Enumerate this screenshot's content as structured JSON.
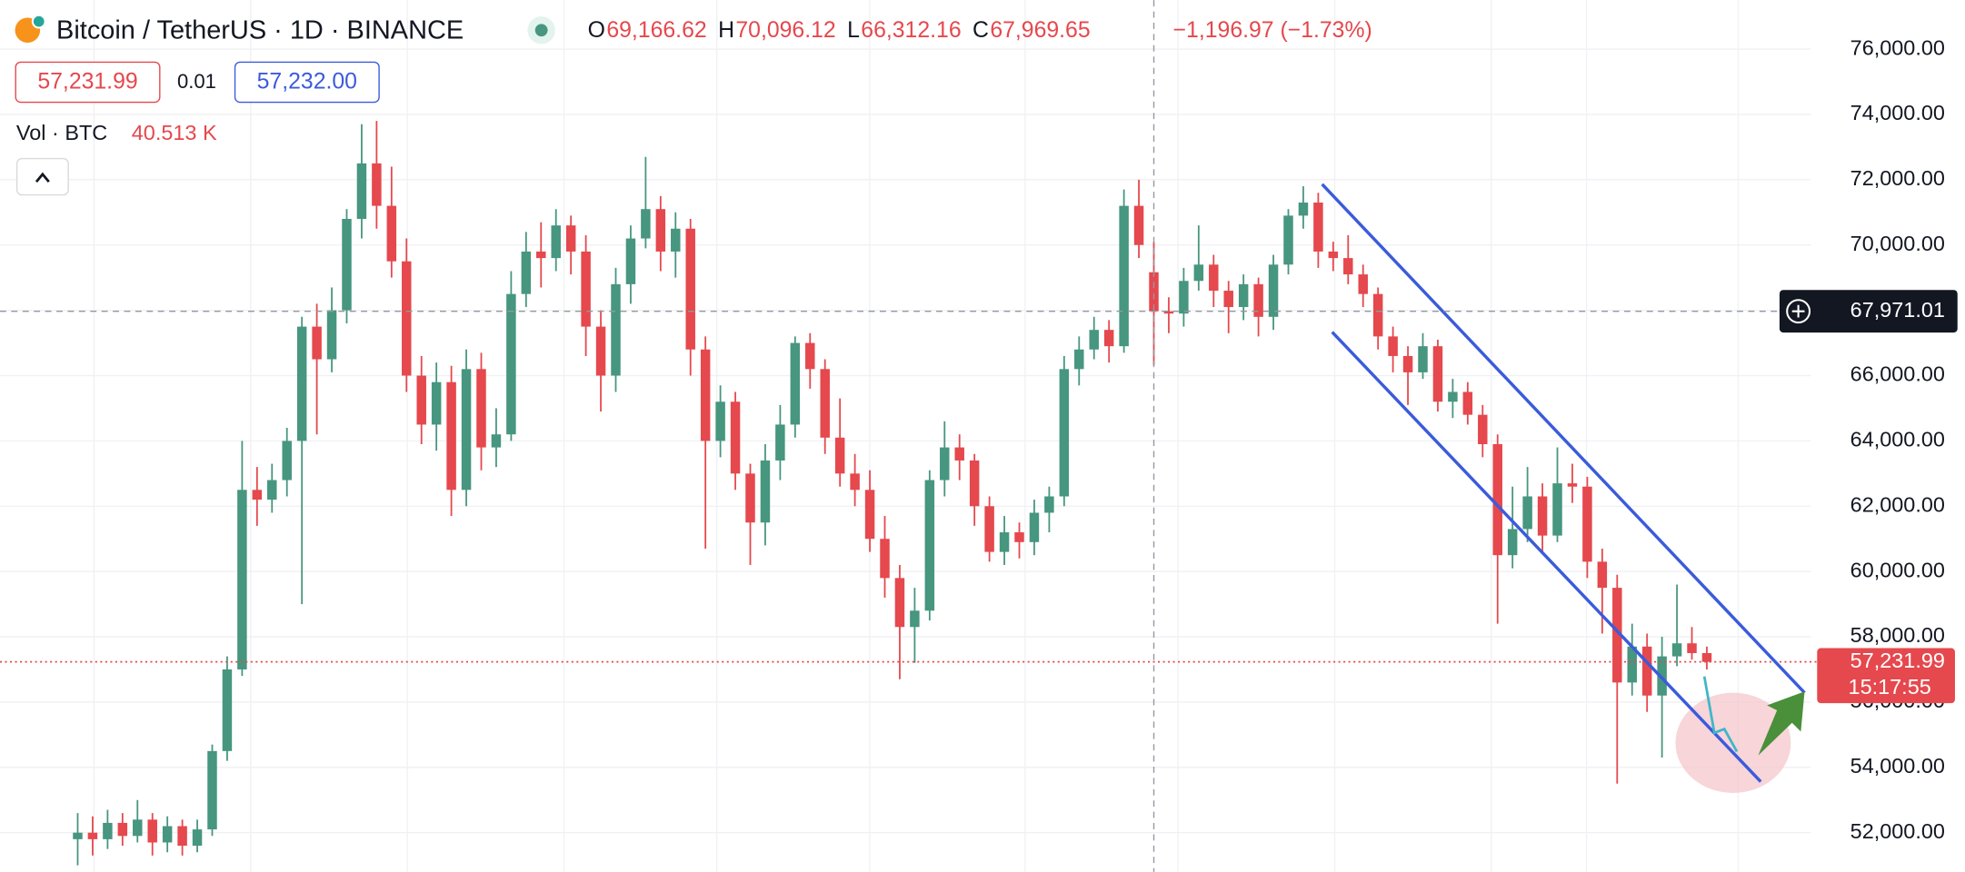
{
  "toolbar": {
    "title": "Bitcoin / TetherUS · 1D · BINANCE",
    "ohlc": [
      {
        "key": "O",
        "value": "69,166.62"
      },
      {
        "key": "H",
        "value": "70,096.12"
      },
      {
        "key": "L",
        "value": "66,312.16"
      },
      {
        "key": "C",
        "value": "67,969.65"
      }
    ],
    "change": "−1,196.97 (−1.73%)",
    "sell": "57,231.99",
    "spread": "0.01",
    "buy": "57,232.00",
    "volume_label": "Vol · BTC",
    "volume_value": "40.513 K"
  },
  "chart_data": {
    "type": "candlestick",
    "up_color": "#47967f",
    "down_color": "#e5484d",
    "ylim": [
      50800,
      77500
    ],
    "yticks": [
      {
        "value": 52000,
        "label": "52,000.00"
      },
      {
        "value": 54000,
        "label": "54,000.00"
      },
      {
        "value": 56000,
        "label": "56,000.00"
      },
      {
        "value": 58000,
        "label": "58,000.00"
      },
      {
        "value": 60000,
        "label": "60,000.00"
      },
      {
        "value": 62000,
        "label": "62,000.00"
      },
      {
        "value": 64000,
        "label": "64,000.00"
      },
      {
        "value": 66000,
        "label": "66,000.00"
      },
      {
        "value": 68000,
        "label": "68,000.00"
      },
      {
        "value": 70000,
        "label": "70,000.00"
      },
      {
        "value": 72000,
        "label": "72,000.00"
      },
      {
        "value": 74000,
        "label": "74,000.00"
      },
      {
        "value": 76000,
        "label": "76,000.00"
      }
    ],
    "grid": true,
    "crosshair_index": 72,
    "crosshair_price": {
      "value": 67971.01,
      "label": "67,971.01"
    },
    "last_price": {
      "value": 57231.99,
      "label": "57,231.99"
    },
    "countdown": "15:17:55",
    "candles": [
      [
        51800,
        52600,
        51000,
        52000
      ],
      [
        52000,
        52500,
        51300,
        51800
      ],
      [
        51800,
        52700,
        51500,
        52300
      ],
      [
        52300,
        52600,
        51600,
        51900
      ],
      [
        51900,
        53000,
        51700,
        52400
      ],
      [
        52400,
        52600,
        51300,
        51700
      ],
      [
        51700,
        52500,
        51400,
        52200
      ],
      [
        52200,
        52400,
        51300,
        51600
      ],
      [
        51600,
        52400,
        51400,
        52100
      ],
      [
        52100,
        54700,
        51900,
        54500
      ],
      [
        54500,
        57400,
        54200,
        57000
      ],
      [
        57000,
        64000,
        56800,
        62500
      ],
      [
        62500,
        63200,
        61400,
        62200
      ],
      [
        62200,
        63300,
        61800,
        62800
      ],
      [
        62800,
        64400,
        62300,
        64000
      ],
      [
        64000,
        67800,
        59000,
        67500
      ],
      [
        67500,
        68200,
        64200,
        66500
      ],
      [
        66500,
        68700,
        66100,
        68000
      ],
      [
        68000,
        71100,
        67600,
        70800
      ],
      [
        70800,
        73700,
        70200,
        72500
      ],
      [
        72500,
        73800,
        70500,
        71200
      ],
      [
        71200,
        72400,
        69000,
        69500
      ],
      [
        69500,
        70200,
        65500,
        66000
      ],
      [
        66000,
        66600,
        63900,
        64500
      ],
      [
        64500,
        66400,
        63700,
        65800
      ],
      [
        65800,
        66300,
        61700,
        62500
      ],
      [
        62500,
        66800,
        62000,
        66200
      ],
      [
        66200,
        66700,
        63100,
        63800
      ],
      [
        63800,
        65000,
        63200,
        64200
      ],
      [
        64200,
        69200,
        64000,
        68500
      ],
      [
        68500,
        70400,
        68100,
        69800
      ],
      [
        69800,
        70700,
        68700,
        69600
      ],
      [
        69600,
        71100,
        69200,
        70600
      ],
      [
        70600,
        70900,
        69100,
        69800
      ],
      [
        69800,
        70300,
        66600,
        67500
      ],
      [
        67500,
        68000,
        64900,
        66000
      ],
      [
        66000,
        69300,
        65500,
        68800
      ],
      [
        68800,
        70600,
        68200,
        70200
      ],
      [
        70200,
        72700,
        69900,
        71100
      ],
      [
        71100,
        71500,
        69200,
        69800
      ],
      [
        69800,
        71000,
        69000,
        70500
      ],
      [
        70500,
        70800,
        66000,
        66800
      ],
      [
        66800,
        67200,
        60700,
        64000
      ],
      [
        64000,
        65700,
        63500,
        65200
      ],
      [
        65200,
        65500,
        62500,
        63000
      ],
      [
        63000,
        63300,
        60200,
        61500
      ],
      [
        61500,
        63900,
        60800,
        63400
      ],
      [
        63400,
        65100,
        62800,
        64500
      ],
      [
        64500,
        67200,
        64100,
        67000
      ],
      [
        67000,
        67300,
        65600,
        66200
      ],
      [
        66200,
        66500,
        63600,
        64100
      ],
      [
        64100,
        65300,
        62600,
        63000
      ],
      [
        63000,
        63600,
        62000,
        62500
      ],
      [
        62500,
        63100,
        60600,
        61000
      ],
      [
        61000,
        61700,
        59200,
        59800
      ],
      [
        59800,
        60200,
        56700,
        58300
      ],
      [
        58300,
        59500,
        57200,
        58800
      ],
      [
        58800,
        63100,
        58500,
        62800
      ],
      [
        62800,
        64600,
        62300,
        63800
      ],
      [
        63800,
        64200,
        62800,
        63400
      ],
      [
        63400,
        63600,
        61400,
        62000
      ],
      [
        62000,
        62300,
        60300,
        60600
      ],
      [
        60600,
        61700,
        60200,
        61200
      ],
      [
        61200,
        61500,
        60400,
        60900
      ],
      [
        60900,
        62200,
        60500,
        61800
      ],
      [
        61800,
        62600,
        61200,
        62300
      ],
      [
        62300,
        66600,
        62000,
        66200
      ],
      [
        66200,
        67200,
        65700,
        66800
      ],
      [
        66800,
        67800,
        66500,
        67400
      ],
      [
        67400,
        67700,
        66400,
        66900
      ],
      [
        66900,
        71700,
        66700,
        71200
      ],
      [
        71200,
        72000,
        69600,
        70000
      ],
      [
        69166.62,
        70096.12,
        66312.16,
        67969.65
      ],
      [
        67970,
        68400,
        67300,
        67900
      ],
      [
        67900,
        69300,
        67500,
        68900
      ],
      [
        68900,
        70600,
        68600,
        69400
      ],
      [
        69400,
        69700,
        68100,
        68600
      ],
      [
        68600,
        68900,
        67300,
        68100
      ],
      [
        68100,
        69100,
        67700,
        68800
      ],
      [
        68800,
        69000,
        67200,
        67800
      ],
      [
        67800,
        69700,
        67400,
        69400
      ],
      [
        69400,
        71100,
        69100,
        70900
      ],
      [
        70900,
        71800,
        70500,
        71300
      ],
      [
        71300,
        71600,
        69300,
        69800
      ],
      [
        69800,
        70100,
        69200,
        69600
      ],
      [
        69600,
        70300,
        68800,
        69100
      ],
      [
        69100,
        69400,
        68100,
        68500
      ],
      [
        68500,
        68700,
        66800,
        67200
      ],
      [
        67200,
        67500,
        66100,
        66600
      ],
      [
        66600,
        66900,
        65100,
        66100
      ],
      [
        66100,
        67300,
        65900,
        66900
      ],
      [
        66900,
        67100,
        64900,
        65200
      ],
      [
        65200,
        65900,
        64700,
        65500
      ],
      [
        65500,
        65800,
        64500,
        64800
      ],
      [
        64800,
        65100,
        63500,
        63900
      ],
      [
        63900,
        64200,
        58400,
        60500
      ],
      [
        60500,
        62600,
        60100,
        61300
      ],
      [
        61300,
        63200,
        60900,
        62300
      ],
      [
        62300,
        62700,
        60600,
        61100
      ],
      [
        61100,
        63800,
        60900,
        62700
      ],
      [
        62700,
        63300,
        62100,
        62600
      ],
      [
        62600,
        62900,
        59800,
        60300
      ],
      [
        60300,
        60700,
        58100,
        59500
      ],
      [
        59500,
        59900,
        53500,
        56600
      ],
      [
        56600,
        58400,
        56200,
        57700
      ],
      [
        57700,
        58100,
        55700,
        56200
      ],
      [
        56200,
        58000,
        54300,
        57400
      ],
      [
        57400,
        59600,
        57100,
        57800
      ],
      [
        57800,
        58300,
        57300,
        57500
      ],
      [
        57500,
        57700,
        57000,
        57231.99
      ]
    ]
  }
}
